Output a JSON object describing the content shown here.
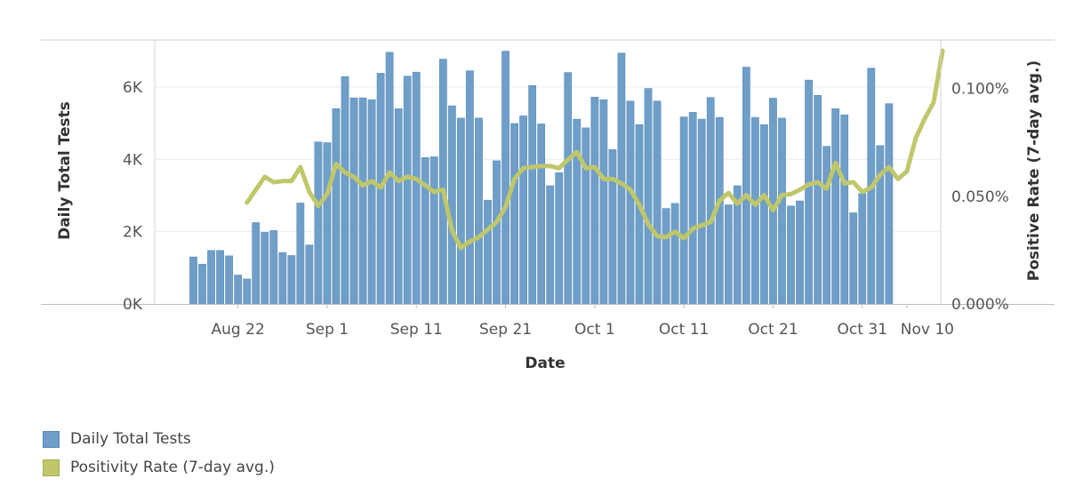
{
  "legend": {
    "items": [
      {
        "label": "Daily Total Tests",
        "color": "#6f9fc8",
        "border": "#5b89b3"
      },
      {
        "label": "Positivity Rate (7-day avg.)",
        "color": "#bfc76a",
        "border": "#a5ad4f"
      }
    ]
  },
  "chart_data": {
    "type": "bar",
    "title": "",
    "xlabel": "Date",
    "ylabel": "Daily Total Tests",
    "y2label": "Positive Rate (7-day avg.)",
    "x_start": "Aug 17",
    "x_ticks": [
      {
        "label": "Aug 22",
        "day": 5
      },
      {
        "label": "Sep 1",
        "day": 15
      },
      {
        "label": "Sep 11",
        "day": 25
      },
      {
        "label": "Sep 21",
        "day": 35
      },
      {
        "label": "Oct 1",
        "day": 45
      },
      {
        "label": "Oct 11",
        "day": 55
      },
      {
        "label": "Oct 21",
        "day": 65
      },
      {
        "label": "Oct 31",
        "day": 75
      },
      {
        "label": "Nov 10",
        "day": 80
      }
    ],
    "y_ticks": [
      {
        "label": "0K",
        "value": 0
      },
      {
        "label": "2K",
        "value": 2000
      },
      {
        "label": "4K",
        "value": 4000
      },
      {
        "label": "6K",
        "value": 6000
      }
    ],
    "y2_ticks": [
      {
        "label": "0.000%",
        "value": 0
      },
      {
        "label": "0.050%",
        "value": 0.05
      },
      {
        "label": "0.100%",
        "value": 0.1
      }
    ],
    "ylim": [
      0,
      7300
    ],
    "y2lim": [
      0,
      0.1225
    ],
    "grid": true,
    "legend_position": "bottom-left",
    "series": [
      {
        "name": "Daily Total Tests",
        "type": "bar",
        "color": "#6f9fc8",
        "values": [
          1300,
          1100,
          1480,
          1480,
          1330,
          800,
          690,
          2250,
          1980,
          2030,
          1420,
          1340,
          2790,
          1630,
          4480,
          4460,
          5400,
          6290,
          5700,
          5700,
          5650,
          6380,
          6960,
          5400,
          6300,
          6410,
          4050,
          4070,
          6770,
          5480,
          5140,
          6450,
          5140,
          2870,
          3960,
          6990,
          4990,
          5200,
          6040,
          4980,
          3270,
          3630,
          6400,
          5110,
          4870,
          5720,
          5650,
          4270,
          6940,
          5610,
          4960,
          5960,
          5610,
          2640,
          2780,
          5170,
          5300,
          5110,
          5710,
          5160,
          2740,
          3270,
          6550,
          5160,
          4960,
          5690,
          5140,
          2710,
          2850,
          6190,
          5770,
          4360,
          5400,
          5230,
          2520,
          3050,
          6520,
          4380,
          5540
        ]
      },
      {
        "name": "Positivity Rate (7-day avg.)",
        "type": "line",
        "color": "#bfc76a",
        "start_index": 6,
        "values": [
          0.047,
          0.053,
          0.059,
          0.0565,
          0.057,
          0.057,
          0.0635,
          0.052,
          0.0455,
          0.051,
          0.065,
          0.061,
          0.059,
          0.055,
          0.057,
          0.054,
          0.061,
          0.057,
          0.059,
          0.058,
          0.055,
          0.052,
          0.053,
          0.034,
          0.026,
          0.029,
          0.031,
          0.0345,
          0.038,
          0.045,
          0.058,
          0.063,
          0.0635,
          0.064,
          0.064,
          0.063,
          0.067,
          0.0705,
          0.063,
          0.0635,
          0.058,
          0.058,
          0.056,
          0.053,
          0.046,
          0.037,
          0.0315,
          0.031,
          0.0335,
          0.0305,
          0.035,
          0.0365,
          0.038,
          0.048,
          0.0515,
          0.0465,
          0.0505,
          0.046,
          0.0505,
          0.0435,
          0.0505,
          0.051,
          0.053,
          0.0555,
          0.0565,
          0.0535,
          0.0655,
          0.056,
          0.0565,
          0.052,
          0.054,
          0.06,
          0.0635,
          0.058,
          0.0615,
          0.077,
          0.086,
          0.0935,
          0.1175
        ]
      }
    ]
  }
}
